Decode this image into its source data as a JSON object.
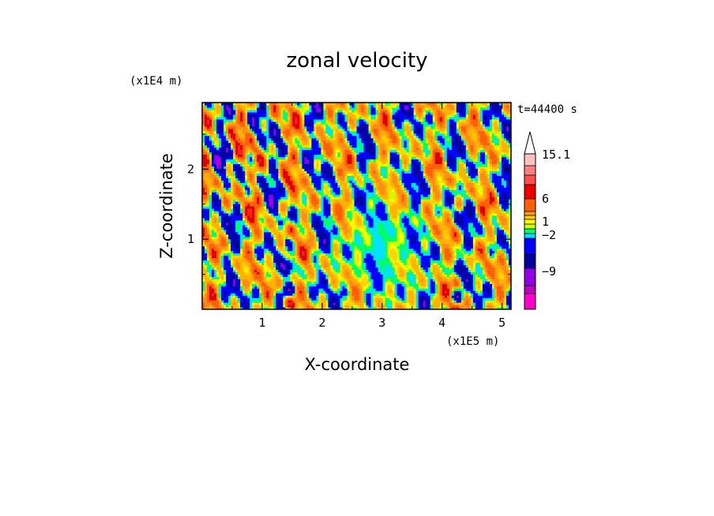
{
  "chart_data": {
    "type": "heatmap",
    "title": "zonal velocity",
    "xlabel": "X-coordinate",
    "ylabel": "Z-coordinate",
    "x_unit": "(x1E5 m)",
    "y_unit": "(x1E4 m)",
    "time_label": "t=44400 s",
    "xlim": [
      0,
      5.15
    ],
    "ylim": [
      0,
      2.95
    ],
    "x_ticks": [
      "1",
      "2",
      "3",
      "4",
      "5"
    ],
    "y_ticks": [
      "1",
      "2"
    ],
    "colorbar": {
      "levels_top_to_bottom": [
        15.1,
        12,
        9,
        6,
        4,
        2,
        1,
        0.5,
        0,
        -1,
        -2,
        -5,
        -9,
        -12,
        -15
      ],
      "labels": [
        "15.1",
        "6",
        "1",
        "-2",
        "-9"
      ],
      "colors_top_to_bottom": [
        "#ffc0c0",
        "#ff8080",
        "#ff2020",
        "#dd0000",
        "#ff6000",
        "#ff8c1a",
        "#ffb300",
        "#ffd400",
        "#ffff00",
        "#c8ff00",
        "#00ff66",
        "#00e0ff",
        "#0000ff",
        "#0000a0",
        "#8000ff",
        "#c000c0",
        "#ff00cc"
      ],
      "top_arrow_color": "#ffffff"
    },
    "value_range": [
      -15,
      15.1
    ]
  },
  "colors": {
    "background": "#ffffff",
    "axis": "#000000"
  }
}
